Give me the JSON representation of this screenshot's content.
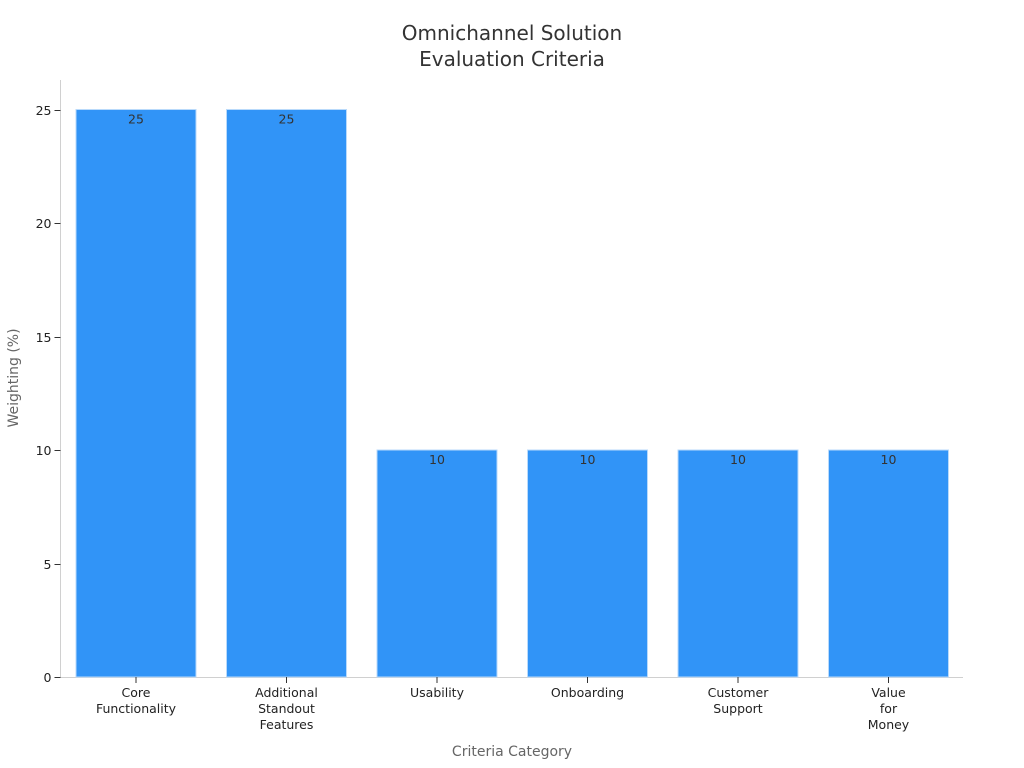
{
  "chart_data": {
    "type": "bar",
    "title": "Omnichannel Solution\nEvaluation Criteria",
    "title_lines": [
      "Omnichannel Solution",
      "Evaluation Criteria"
    ],
    "xlabel": "Criteria Category",
    "ylabel": "Weighting (%)",
    "categories": [
      "Core\nFunctionality",
      "Additional\nStandout\nFeatures",
      "Usability",
      "Onboarding",
      "Customer\nSupport",
      "Value\nfor\nMoney"
    ],
    "values": [
      25,
      25,
      10,
      10,
      10,
      10
    ],
    "data_labels": [
      "25",
      "25",
      "10",
      "10",
      "10",
      "10"
    ],
    "ylim": [
      0,
      26.3
    ],
    "yticks": [
      0,
      5,
      10,
      15,
      20,
      25
    ],
    "ytick_labels": [
      "0",
      "5",
      "10",
      "15",
      "20",
      "25"
    ],
    "bar_color": "#3194f7",
    "bar_edge_color": "#b9dafb",
    "grid": false,
    "legend": "none"
  }
}
